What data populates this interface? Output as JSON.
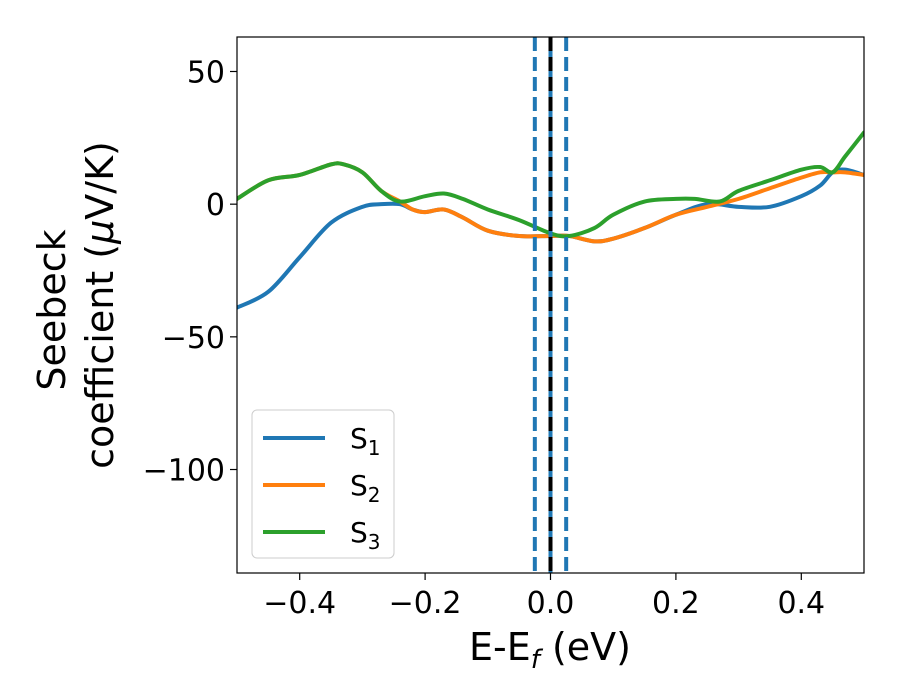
{
  "chart_data": {
    "type": "line",
    "title": "",
    "xlabel": "E-E",
    "xlabel_sub": "f",
    "xlabel_unit": " (eV)",
    "ylabel_line1": "Seebeck",
    "ylabel_line2": "coefficient  (",
    "ylabel_mu": "μ",
    "ylabel_unit": "V/K)",
    "xlim": [
      -0.5,
      0.5
    ],
    "ylim": [
      -139,
      63
    ],
    "xticks": [
      -0.4,
      -0.2,
      0.0,
      0.2,
      0.4
    ],
    "xtick_labels": [
      "−0.4",
      "−0.2",
      "0.0",
      "0.2",
      "0.4"
    ],
    "yticks": [
      50,
      0,
      -50,
      -100
    ],
    "ytick_labels": [
      "50",
      "0",
      "−50",
      "−100"
    ],
    "grid": false,
    "legend_position": "lower-left",
    "vlines": [
      {
        "x": 0.0,
        "color": "#000000",
        "style": "dashed"
      },
      {
        "x": -0.025,
        "color": "#1f77b4",
        "style": "dashed"
      },
      {
        "x": 0.0,
        "color": "#1f77b4",
        "style": "solid"
      },
      {
        "x": 0.025,
        "color": "#1f77b4",
        "style": "dashed"
      }
    ],
    "series": [
      {
        "name": "S",
        "sub": "1",
        "color": "#1f77b4",
        "x": [
          -0.5,
          -0.45,
          -0.4,
          -0.35,
          -0.3,
          -0.27,
          -0.24,
          -0.22,
          -0.2,
          -0.17,
          -0.14,
          -0.1,
          -0.05,
          0.0,
          0.03,
          0.07,
          0.1,
          0.15,
          0.2,
          0.25,
          0.3,
          0.35,
          0.4,
          0.43,
          0.45,
          0.47,
          0.5
        ],
        "y": [
          -39,
          -33,
          -20,
          -7,
          -1,
          0,
          0,
          -2,
          -3,
          -2,
          -5,
          -10,
          -12,
          -12,
          -12,
          -14,
          -13,
          -9,
          -4,
          0,
          -1,
          -1,
          3,
          7,
          12,
          13,
          11
        ]
      },
      {
        "name": "S",
        "sub": "2",
        "color": "#ff7f0e",
        "x": [
          -0.5,
          -0.45,
          -0.4,
          -0.35,
          -0.33,
          -0.3,
          -0.27,
          -0.24,
          -0.22,
          -0.2,
          -0.17,
          -0.14,
          -0.1,
          -0.05,
          0.0,
          0.03,
          0.07,
          0.1,
          0.15,
          0.2,
          0.25,
          0.3,
          0.35,
          0.4,
          0.43,
          0.45,
          0.47,
          0.5
        ],
        "y": [
          2,
          9,
          11,
          15,
          15,
          12,
          5,
          1,
          -2,
          -3,
          -2,
          -5,
          -10,
          -12,
          -12,
          -12,
          -14,
          -13,
          -9,
          -4,
          -1,
          2,
          6,
          10,
          12,
          12,
          12,
          11
        ]
      },
      {
        "name": "S",
        "sub": "3",
        "color": "#2ca02c",
        "x": [
          -0.5,
          -0.45,
          -0.4,
          -0.35,
          -0.33,
          -0.3,
          -0.27,
          -0.24,
          -0.2,
          -0.17,
          -0.14,
          -0.1,
          -0.05,
          0.0,
          0.03,
          0.07,
          0.1,
          0.15,
          0.2,
          0.23,
          0.27,
          0.3,
          0.35,
          0.4,
          0.43,
          0.45,
          0.47,
          0.5
        ],
        "y": [
          2,
          9,
          11,
          15,
          15,
          12,
          5,
          1,
          3,
          4,
          2,
          -2,
          -6,
          -11,
          -12,
          -9,
          -4,
          1,
          2,
          2,
          1,
          5,
          9,
          13,
          14,
          12,
          18,
          27
        ]
      }
    ]
  }
}
